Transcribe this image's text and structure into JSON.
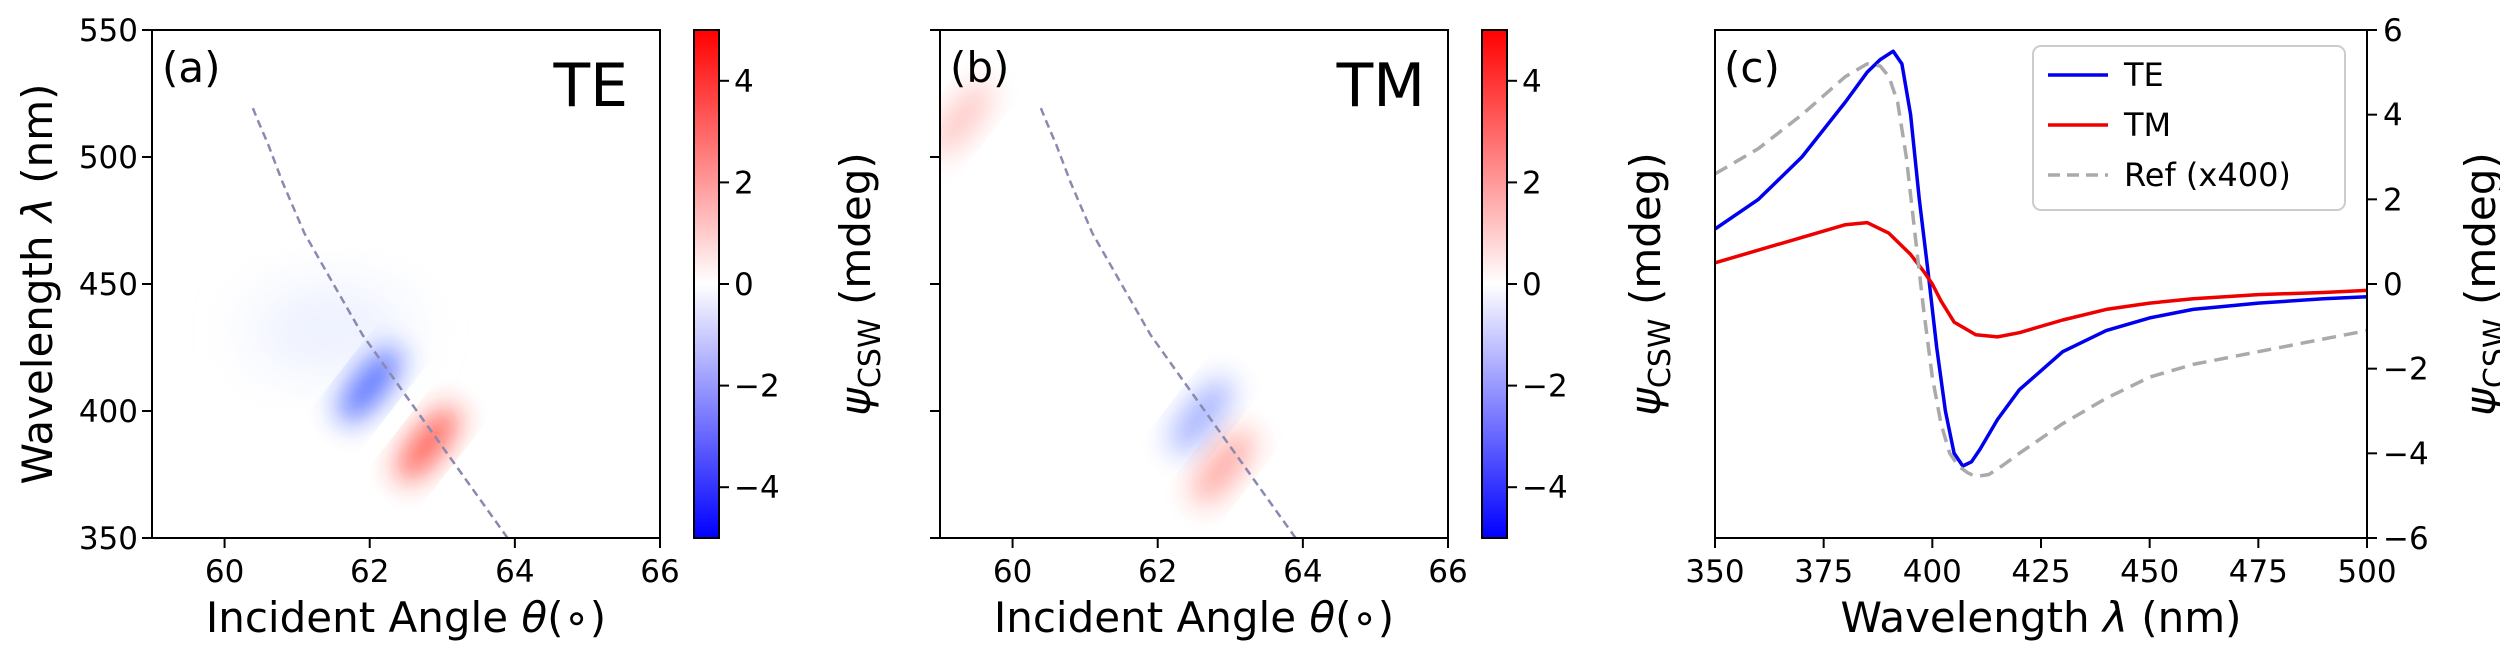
{
  "chart_data": [
    {
      "type": "heatmap",
      "panel_label": "(a)",
      "mode_label": "TE",
      "mode_color": "#0000ff",
      "xlabel_prefix": "Incident Angle ",
      "xlabel_symbol": "θ",
      "xlabel_suffix": "(∘)",
      "ylabel_prefix": "Wavelength ",
      "ylabel_symbol": "λ",
      "ylabel_suffix": " (nm)",
      "xlim": [
        59,
        66
      ],
      "ylim": [
        350,
        550
      ],
      "x_ticks": [
        "60",
        "62",
        "64",
        "66"
      ],
      "y_ticks": [
        "350",
        "400",
        "450",
        "500",
        "550"
      ],
      "colormap": "bwr",
      "clim": [
        -5,
        5
      ],
      "colorbar_ticks": [
        "4",
        "2",
        "0",
        "−2",
        "−4"
      ],
      "colorbar_label_symbol": "ψ",
      "colorbar_label_sub": "CSW",
      "colorbar_label_unit": " (mdeg)",
      "reference_curve": {
        "style": "dashed",
        "color": "#8a8ab0",
        "x": [
          63.9,
          63.4,
          62.9,
          62.4,
          61.9,
          61.5,
          61.1,
          60.8,
          60.6,
          60.45,
          60.38
        ],
        "y": [
          350,
          370,
          390,
          410,
          430,
          450,
          470,
          490,
          505,
          515,
          520
        ]
      },
      "features": [
        {
          "sign": "negative",
          "x": 62.0,
          "y": 410,
          "peak_mdeg": -4.5
        },
        {
          "sign": "positive",
          "x": 62.8,
          "y": 387,
          "peak_mdeg": 4.5
        }
      ]
    },
    {
      "type": "heatmap",
      "panel_label": "(b)",
      "mode_label": "TM",
      "mode_color": "#ff0000",
      "xlabel_prefix": "Incident Angle ",
      "xlabel_symbol": "θ",
      "xlabel_suffix": "(∘)",
      "xlim": [
        59,
        66
      ],
      "ylim": [
        350,
        550
      ],
      "x_ticks": [
        "60",
        "62",
        "64",
        "66"
      ],
      "colormap": "bwr",
      "clim": [
        -5,
        5
      ],
      "colorbar_ticks": [
        "4",
        "2",
        "0",
        "−2",
        "−4"
      ],
      "colorbar_label_symbol": "ψ",
      "colorbar_label_sub": "CSW",
      "colorbar_label_unit": " (mdeg)",
      "reference_curve": {
        "style": "dashed",
        "color": "#8a8ab0",
        "x": [
          63.9,
          63.4,
          62.9,
          62.4,
          61.9,
          61.5,
          61.1,
          60.8,
          60.6,
          60.45,
          60.38
        ],
        "y": [
          350,
          370,
          390,
          410,
          430,
          450,
          470,
          490,
          505,
          515,
          520
        ]
      },
      "features": [
        {
          "sign": "negative",
          "x": 62.6,
          "y": 398,
          "peak_mdeg": -2.5
        },
        {
          "sign": "positive",
          "x": 62.9,
          "y": 378,
          "peak_mdeg": 2.5
        },
        {
          "sign": "positive",
          "x": 59.3,
          "y": 515,
          "peak_mdeg": 1.5
        }
      ]
    },
    {
      "type": "line",
      "panel_label": "(c)",
      "xlabel_prefix": "Wavelength ",
      "xlabel_symbol": "λ",
      "xlabel_suffix": " (nm)",
      "ylabel_symbol": "ψ",
      "ylabel_sub": "CSW",
      "ylabel_unit": " (mdeg)",
      "xlim": [
        350,
        500
      ],
      "ylim": [
        -6,
        6
      ],
      "x_ticks": [
        "350",
        "375",
        "400",
        "425",
        "450",
        "475",
        "500"
      ],
      "y_ticks": [
        "6",
        "4",
        "2",
        "0",
        "−2",
        "−4",
        "−6"
      ],
      "legend_position": "upper-right",
      "series": [
        {
          "name": "TE",
          "color": "#0000ee",
          "style": "solid",
          "x": [
            350,
            360,
            370,
            380,
            385,
            388,
            391,
            393,
            395,
            397,
            399,
            401,
            403,
            405,
            407,
            409,
            411,
            415,
            420,
            430,
            440,
            450,
            460,
            475,
            490,
            500
          ],
          "y": [
            1.3,
            2.0,
            3.0,
            4.3,
            5.0,
            5.3,
            5.5,
            5.2,
            4.0,
            2.0,
            0.3,
            -1.5,
            -3.0,
            -4.0,
            -4.3,
            -4.2,
            -3.9,
            -3.2,
            -2.5,
            -1.6,
            -1.1,
            -0.8,
            -0.6,
            -0.45,
            -0.35,
            -0.3
          ]
        },
        {
          "name": "TM",
          "color": "#ee0000",
          "style": "solid",
          "x": [
            350,
            360,
            370,
            380,
            385,
            390,
            395,
            398,
            400,
            402,
            405,
            410,
            415,
            420,
            430,
            440,
            450,
            460,
            475,
            490,
            500
          ],
          "y": [
            0.5,
            0.8,
            1.1,
            1.4,
            1.45,
            1.2,
            0.7,
            0.3,
            0.0,
            -0.4,
            -0.9,
            -1.2,
            -1.25,
            -1.15,
            -0.85,
            -0.6,
            -0.45,
            -0.35,
            -0.25,
            -0.2,
            -0.15
          ]
        },
        {
          "name": "Ref (x400)",
          "color": "#aaaaaa",
          "style": "dashed",
          "x": [
            350,
            360,
            370,
            380,
            385,
            388,
            390,
            392,
            394,
            396,
            398,
            400,
            402,
            404,
            406,
            408,
            410,
            413,
            416,
            420,
            430,
            440,
            450,
            460,
            475,
            490,
            500
          ],
          "y": [
            2.6,
            3.2,
            4.0,
            4.9,
            5.2,
            5.15,
            4.9,
            4.3,
            3.0,
            1.2,
            -0.6,
            -2.2,
            -3.3,
            -4.0,
            -4.3,
            -4.45,
            -4.55,
            -4.5,
            -4.3,
            -4.0,
            -3.3,
            -2.7,
            -2.2,
            -1.9,
            -1.6,
            -1.3,
            -1.1
          ]
        }
      ]
    }
  ]
}
